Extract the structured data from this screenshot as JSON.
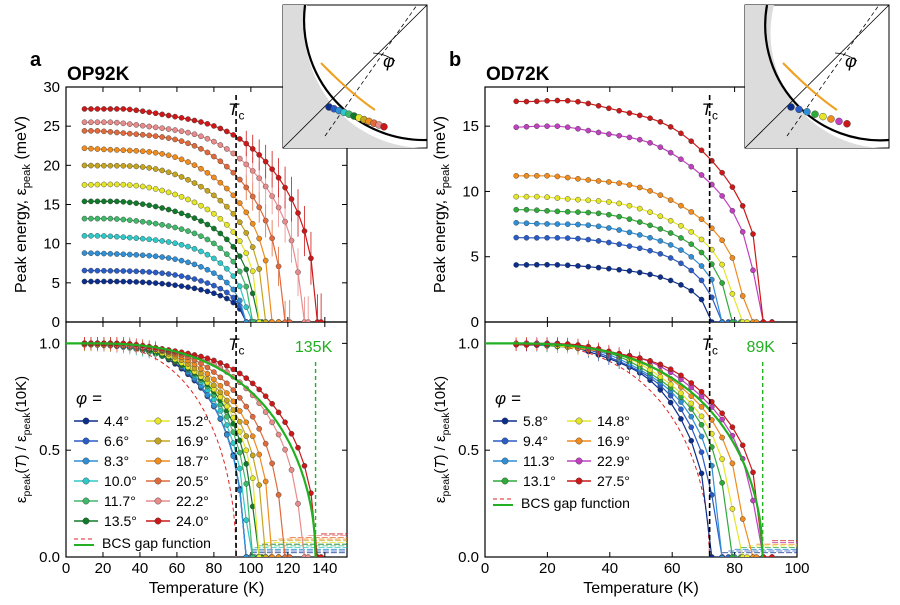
{
  "chart_data": [
    {
      "type": "line",
      "panel_label": "a",
      "sample": "OP92K",
      "xlabel": "Temperature (K)",
      "x_ticks": [
        "0",
        "20",
        "40",
        "60",
        "80",
        "100",
        "120",
        "140"
      ],
      "xlim": [
        0,
        152
      ],
      "tc_value": 92,
      "tc_label_main": "T",
      "tc_label_sub": "c",
      "top": {
        "ylabel_main": "Peak energy, ε",
        "ylabel_sub": "peak",
        "ylabel_unit": " (meV)",
        "ylim": [
          0,
          30
        ],
        "y_ticks": [
          "0",
          "5",
          "10",
          "15",
          "20",
          "25",
          "30"
        ]
      },
      "bottom": {
        "ylabel": "ε_peak(T) / ε_peak(10K)",
        "ylabel_parts": [
          "ε",
          "peak",
          "(",
          "T",
          ") / ε",
          "peak",
          "(10K)"
        ],
        "ylim": [
          0,
          1.1
        ],
        "y_ticks": [
          "0.0",
          "0.5",
          "1.0"
        ],
        "green_marker_value": 135,
        "green_marker_label": "135K"
      },
      "legend_title": "φ =",
      "bcs_label": "BCS gap function",
      "series": [
        {
          "name": "4.4°",
          "color": "#0b2d8c",
          "e0": 5.2,
          "tstop": 96,
          "tlast": 100,
          "sharp": 8
        },
        {
          "name": "6.6°",
          "color": "#2a5cc8",
          "e0": 6.6,
          "tstop": 96,
          "tlast": 100,
          "sharp": 8
        },
        {
          "name": "8.3°",
          "color": "#2f8fd6",
          "e0": 8.8,
          "tstop": 96,
          "tlast": 100,
          "sharp": 8
        },
        {
          "name": "10.0°",
          "color": "#2fc8c8",
          "e0": 11.0,
          "tstop": 98,
          "tlast": 102,
          "sharp": 8
        },
        {
          "name": "11.7°",
          "color": "#40b86a",
          "e0": 13.2,
          "tstop": 100,
          "tlast": 104,
          "sharp": 8
        },
        {
          "name": "13.5°",
          "color": "#107a2a",
          "e0": 15.4,
          "tstop": 102,
          "tlast": 106,
          "sharp": 8
        },
        {
          "name": "15.2°",
          "color": "#e5e52a",
          "e0": 17.6,
          "tstop": 104,
          "tlast": 108,
          "sharp": 8
        },
        {
          "name": "16.9°",
          "color": "#c5a520",
          "e0": 20.1,
          "tstop": 107,
          "tlast": 111,
          "sharp": 8
        },
        {
          "name": "18.7°",
          "color": "#f08c1e",
          "e0": 22.2,
          "tstop": 111,
          "tlast": 115,
          "sharp": 8
        },
        {
          "name": "20.5°",
          "color": "#e06a3c",
          "e0": 24.4,
          "tstop": 117,
          "tlast": 121,
          "sharp": 8
        },
        {
          "name": "22.2°",
          "color": "#e88b8b",
          "e0": 25.5,
          "tstop": 127,
          "tlast": 131,
          "sharp": 8
        },
        {
          "name": "24.0°",
          "color": "#cc1818",
          "e0": 27.2,
          "tstop": 135,
          "tlast": 138,
          "sharp": 8
        }
      ]
    },
    {
      "type": "line",
      "panel_label": "b",
      "sample": "OD72K",
      "xlabel": "Temperature (K)",
      "x_ticks": [
        "0",
        "20",
        "40",
        "60",
        "80",
        "100"
      ],
      "xlim": [
        0,
        100
      ],
      "tc_value": 72,
      "tc_label_main": "T",
      "tc_label_sub": "c",
      "top": {
        "ylabel_main": "Peak energy, ε",
        "ylabel_sub": "peak",
        "ylabel_unit": " (meV)",
        "ylim": [
          0,
          18
        ],
        "y_ticks": [
          "0",
          "5",
          "10",
          "15"
        ]
      },
      "bottom": {
        "ylabel": "ε_peak(T) / ε_peak(10K)",
        "ylabel_parts": [
          "ε",
          "peak",
          "(",
          "T",
          ") / ε",
          "peak",
          "(10K)"
        ],
        "ylim": [
          0,
          1.1
        ],
        "y_ticks": [
          "0.0",
          "0.5",
          "1.0"
        ],
        "green_marker_value": 89,
        "green_marker_label": "89K"
      },
      "legend_title": "φ =",
      "bcs_label": "BCS gap function",
      "series": [
        {
          "name": "5.8°",
          "color": "#0b2d8c",
          "e0": 4.4,
          "tstop": 72,
          "tlast": 76,
          "sharp": 8
        },
        {
          "name": "9.4°",
          "color": "#2a5cc8",
          "e0": 6.5,
          "tstop": 74,
          "tlast": 78,
          "sharp": 8
        },
        {
          "name": "11.3°",
          "color": "#2f8fd6",
          "e0": 7.6,
          "tstop": 76,
          "tlast": 80,
          "sharp": 8
        },
        {
          "name": "13.1°",
          "color": "#2faa3a",
          "e0": 8.6,
          "tstop": 78,
          "tlast": 82,
          "sharp": 8
        },
        {
          "name": "14.8°",
          "color": "#e5e52a",
          "e0": 9.6,
          "tstop": 80,
          "tlast": 84,
          "sharp": 8
        },
        {
          "name": "16.9°",
          "color": "#f08c1e",
          "e0": 11.2,
          "tstop": 83,
          "tlast": 87,
          "sharp": 8
        },
        {
          "name": "22.9°",
          "color": "#c040c0",
          "e0": 15.0,
          "tstop": 87,
          "tlast": 92,
          "sharp": 8
        },
        {
          "name": "27.5°",
          "color": "#cc1818",
          "e0": 17.0,
          "tstop": 89,
          "tlast": 92,
          "sharp": 8
        }
      ]
    }
  ],
  "inset_symbol": "φ"
}
